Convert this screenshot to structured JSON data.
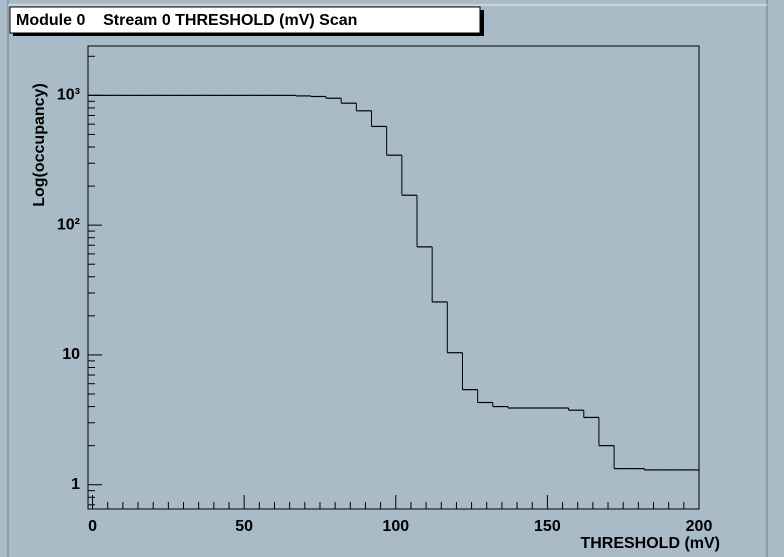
{
  "chart_data": {
    "type": "histogram",
    "title": "Module 0    Stream 0 THRESHOLD (mV) Scan",
    "x_label": "THRESHOLD (mV)",
    "y_label": "Log(occupancy)",
    "log_y": true,
    "color": "#000000",
    "bins": [
      -1.5,
      2,
      7,
      12,
      17,
      22,
      27,
      32,
      37,
      42,
      47,
      52,
      57,
      62,
      67,
      72,
      77,
      82,
      87,
      92,
      97,
      102,
      107,
      112,
      117,
      122,
      127,
      132,
      137,
      142,
      147,
      152,
      157,
      162,
      167,
      172,
      177,
      182,
      187,
      192,
      197,
      200
    ],
    "values": [
      1000,
      1000,
      1000,
      1000,
      1000,
      1000,
      1000,
      1000,
      1000,
      1000,
      1000,
      1000,
      1000,
      1000,
      990,
      980,
      950,
      870,
      760,
      576,
      346,
      170,
      68,
      25.6,
      10.4,
      5.4,
      4.3,
      4.0,
      3.9,
      3.9,
      3.9,
      3.9,
      3.75,
      3.3,
      2.0,
      1.33,
      1.33,
      1.3,
      1.3,
      1.3,
      1.3
    ],
    "xlim": [
      -1.5,
      200
    ],
    "xticks": [
      0,
      50,
      100,
      150,
      200
    ],
    "ylim": [
      0.65,
      2400
    ],
    "yticks": [
      1,
      10,
      {
        "value": 100,
        "label": "10²"
      },
      {
        "value": 1000,
        "label": "10³"
      }
    ]
  }
}
